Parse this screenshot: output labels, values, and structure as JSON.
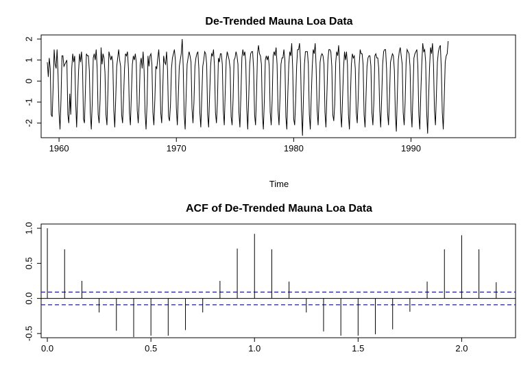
{
  "chart_data": [
    {
      "type": "line",
      "title": "De-Trended Mauna Loa Data",
      "xlabel": "Time",
      "ylabel": "",
      "xlim": [
        1959,
        1997.917
      ],
      "ylim": [
        -2.5,
        2.0
      ],
      "xticks": [
        1960,
        1970,
        1980,
        1990
      ],
      "yticks": [
        -2,
        -1,
        0,
        1,
        2
      ],
      "grid": false,
      "series": [
        {
          "color": "#000000",
          "start": 1959,
          "frequency": 12,
          "values": [
            0.9,
            0.2,
            1.1,
            0.6,
            -1.6,
            -1.7,
            -0.2,
            1.5,
            0.8,
            0.6,
            1.5,
            0.3,
            -1.5,
            -2.3,
            -0.9,
            1.2,
            1.2,
            0.7,
            0.8,
            0.9,
            1.0,
            -1.6,
            -2.0,
            -0.6,
            -1.6,
            0.6,
            1.3,
            0.9,
            1.2,
            -1.0,
            -2.2,
            -0.8,
            0.5,
            1.3,
            0.9,
            1.4,
            0.7,
            -1.8,
            -2.0,
            -0.4,
            1.3,
            1.2,
            1.2,
            0.5,
            -1.5,
            -2.3,
            -1.0,
            1.1,
            1.3,
            1.0,
            1.5,
            0.6,
            -1.6,
            -2.0,
            -0.9,
            1.6,
            0.8,
            1.3,
            1.1,
            0.4,
            -1.6,
            -2.1,
            -0.5,
            1.4,
            1.2,
            1.0,
            1.2,
            0.9,
            -1.4,
            -2.2,
            -0.8,
            0.7,
            1.1,
            1.5,
            1.0,
            0.7,
            -1.6,
            -2.0,
            -0.8,
            0.6,
            1.3,
            1.2,
            1.4,
            0.6,
            -1.5,
            -2.1,
            -0.6,
            0.8,
            1.2,
            1.0,
            1.3,
            0.9,
            -1.4,
            -2.0,
            -1.0,
            0.8,
            1.1,
            0.6,
            1.4,
            0.5,
            -1.5,
            -2.3,
            -1.1,
            1.2,
            0.7,
            1.2,
            1.3,
            0.8,
            -1.5,
            -2.1,
            -0.9,
            0.7,
            0.6,
            1.1,
            1.5,
            0.7,
            -1.5,
            -2.0,
            -0.6,
            1.2,
            0.9,
            0.8,
            1.4,
            0.5,
            -1.7,
            -1.9,
            -1.1,
            0.6,
            1.1,
            1.3,
            1.5,
            1.0,
            -1.3,
            -2.1,
            -0.7,
            0.7,
            1.0,
            1.3,
            2.0,
            0.7,
            -1.6,
            -2.3,
            -0.7,
            0.8,
            1.1,
            1.4,
            1.2,
            0.9,
            -1.3,
            -2.0,
            -1.0,
            0.7,
            1.1,
            1.3,
            1.4,
            0.6,
            -1.5,
            -2.2,
            -0.8,
            0.7,
            1.0,
            1.4,
            1.3,
            0.8,
            -1.6,
            -2.2,
            -0.7,
            0.7,
            1.3,
            1.2,
            1.5,
            0.7,
            -1.5,
            -2.0,
            -1.0,
            1.1,
            0.9,
            1.3,
            1.3,
            0.8,
            -1.4,
            -2.1,
            -0.5,
            1.0,
            1.4,
            1.2,
            1.0,
            0.6,
            -1.7,
            -2.1,
            -0.9,
            1.0,
            1.1,
            1.4,
            1.2,
            0.8,
            -1.5,
            -2.2,
            -0.7,
            1.1,
            1.5,
            1.2,
            1.4,
            0.9,
            -1.3,
            -2.3,
            -0.8,
            0.8,
            1.3,
            1.4,
            1.4,
            0.6,
            -1.6,
            -2.1,
            -0.6,
            1.3,
            1.7,
            1.3,
            1.2,
            0.8,
            -1.6,
            -2.3,
            -0.9,
            1.0,
            1.2,
            1.0,
            1.2,
            0.7,
            -1.5,
            -2.1,
            -0.9,
            1.2,
            1.4,
            1.2,
            1.6,
            0.8,
            -1.4,
            -2.1,
            -0.8,
            0.8,
            1.1,
            1.1,
            1.5,
            1.0,
            -1.7,
            -2.3,
            -0.6,
            0.8,
            1.4,
            1.2,
            1.8,
            0.6,
            -1.8,
            -2.1,
            -1.0,
            0.7,
            1.5,
            1.5,
            1.8,
            0.9,
            -1.4,
            -2.6,
            -0.8,
            0.8,
            1.4,
            1.4,
            1.4,
            0.8,
            -1.6,
            -2.3,
            -0.7,
            0.7,
            1.5,
            1.3,
            1.8,
            0.6,
            -1.4,
            -2.1,
            -0.8,
            0.9,
            1.2,
            1.3,
            1.2,
            0.8,
            -1.5,
            -2.2,
            -0.6,
            1.0,
            1.5,
            1.5,
            1.4,
            0.7,
            -1.6,
            -1.9,
            -1.1,
            0.9,
            1.4,
            1.2,
            1.7,
            0.8,
            -1.5,
            -2.2,
            -0.8,
            0.6,
            1.4,
            1.0,
            1.4,
            0.8,
            -1.6,
            -2.3,
            -0.8,
            0.8,
            1.3,
            1.1,
            1.2,
            0.6,
            -1.5,
            -2.0,
            -0.8,
            0.8,
            1.5,
            1.3,
            1.3,
            0.8,
            -1.6,
            -2.2,
            -0.7,
            0.7,
            1.1,
            1.2,
            1.2,
            0.7,
            -1.5,
            -2.1,
            -1.0,
            1.2,
            1.3,
            1.1,
            1.1,
            0.6,
            -1.4,
            -2.2,
            -0.8,
            0.8,
            1.4,
            1.5,
            1.5,
            0.6,
            -1.5,
            -2.1,
            -0.8,
            0.9,
            1.1,
            1.3,
            1.2,
            0.5,
            -1.6,
            -2.4,
            -0.7,
            1.0,
            1.4,
            1.6,
            1.2,
            0.8,
            -1.5,
            -2.1,
            -1.0,
            0.9,
            1.5,
            1.4,
            1.3,
            0.7,
            -1.4,
            -2.2,
            -0.6,
            1.1,
            1.3,
            1.4,
            1.5,
            0.7,
            -1.6,
            -2.3,
            -0.6,
            0.8,
            1.8,
            1.4,
            1.5,
            0.9,
            -1.5,
            -2.5,
            -0.8,
            0.7,
            1.6,
            1.3,
            1.8,
            0.8,
            -1.4,
            -2.1,
            -0.6,
            0.9,
            1.4,
            1.6,
            1.7,
            0.6,
            -1.5,
            -2.3,
            -0.8,
            0.9,
            1.2,
            1.3,
            1.9
          ]
        }
      ]
    },
    {
      "type": "bar",
      "title": "ACF of De-Trended Mauna Loa Data",
      "xlabel": "",
      "ylabel": "",
      "xlim": [
        -0.03,
        2.26
      ],
      "ylim": [
        -0.56,
        1.06
      ],
      "xticks": [
        0.0,
        0.5,
        1.0,
        1.5,
        2.0
      ],
      "xtick_labels": [
        "0.0",
        "0.5",
        "1.0",
        "1.5",
        "2.0"
      ],
      "yticks": [
        -0.5,
        0.0,
        0.5,
        1.0
      ],
      "ytick_labels": [
        "-0.5",
        "0.0",
        "0.5",
        "1.0"
      ],
      "grid": false,
      "confidence_band": 0.09,
      "confidence_band_color": "#1a1aa6",
      "bar_color": "#000000",
      "lags": [
        0,
        0.0833,
        0.1667,
        0.25,
        0.3333,
        0.4167,
        0.5,
        0.5833,
        0.6667,
        0.75,
        0.8333,
        0.9167,
        1.0,
        1.0833,
        1.1667,
        1.25,
        1.3333,
        1.4167,
        1.5,
        1.5833,
        1.6667,
        1.75,
        1.8333,
        1.9167,
        2.0,
        2.0833,
        2.1667
      ],
      "values": [
        1.0,
        0.7,
        0.25,
        -0.2,
        -0.46,
        -0.55,
        -0.53,
        -0.53,
        -0.45,
        -0.2,
        0.25,
        0.71,
        0.92,
        0.7,
        0.24,
        -0.2,
        -0.47,
        -0.53,
        -0.53,
        -0.51,
        -0.44,
        -0.19,
        0.24,
        0.7,
        0.9,
        0.7,
        0.23
      ]
    }
  ]
}
